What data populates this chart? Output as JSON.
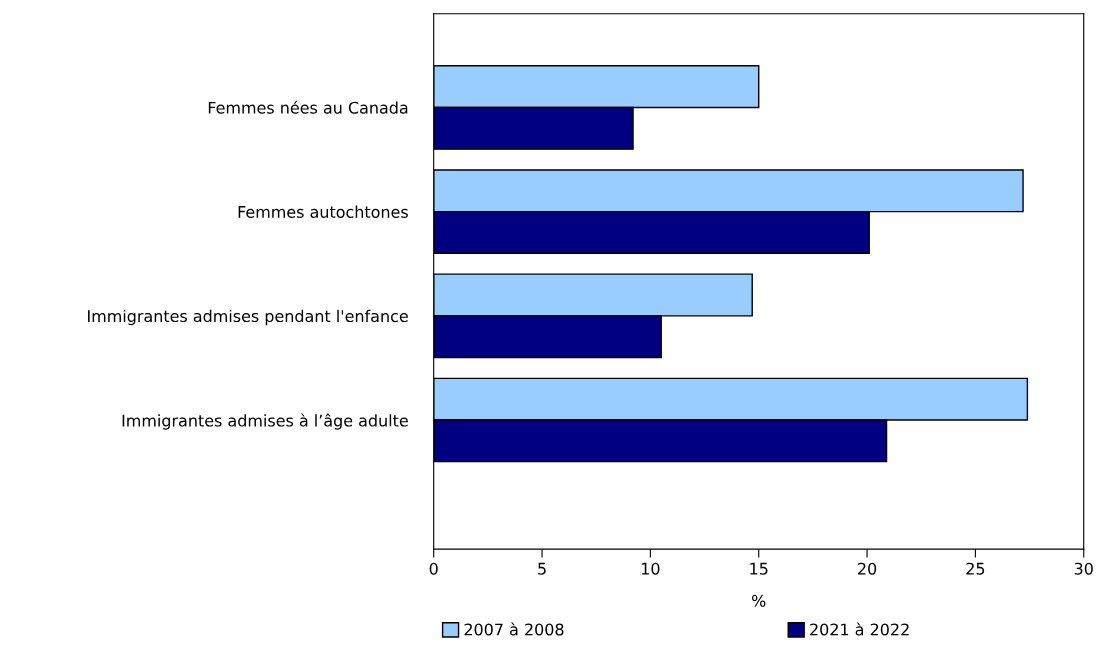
{
  "chart_data": {
    "type": "bar",
    "orientation": "horizontal",
    "xlabel": "%",
    "categories": [
      "Femmes nées au Canada",
      "Femmes autochtones",
      "Immigrantes admises pendant l'enfance",
      "Immigrantes admises à l’âge adulte"
    ],
    "series": [
      {
        "name": "2007 à 2008",
        "color": "#99ccff",
        "values": [
          15.0,
          27.2,
          14.7,
          27.4
        ]
      },
      {
        "name": "2021 à 2022",
        "color": "#000080",
        "values": [
          9.2,
          20.1,
          10.5,
          20.9
        ]
      }
    ],
    "xlim": [
      0,
      30
    ],
    "xticks": [
      0,
      5,
      10,
      15,
      20,
      25,
      30
    ],
    "grid": false,
    "legend": "bottom"
  }
}
